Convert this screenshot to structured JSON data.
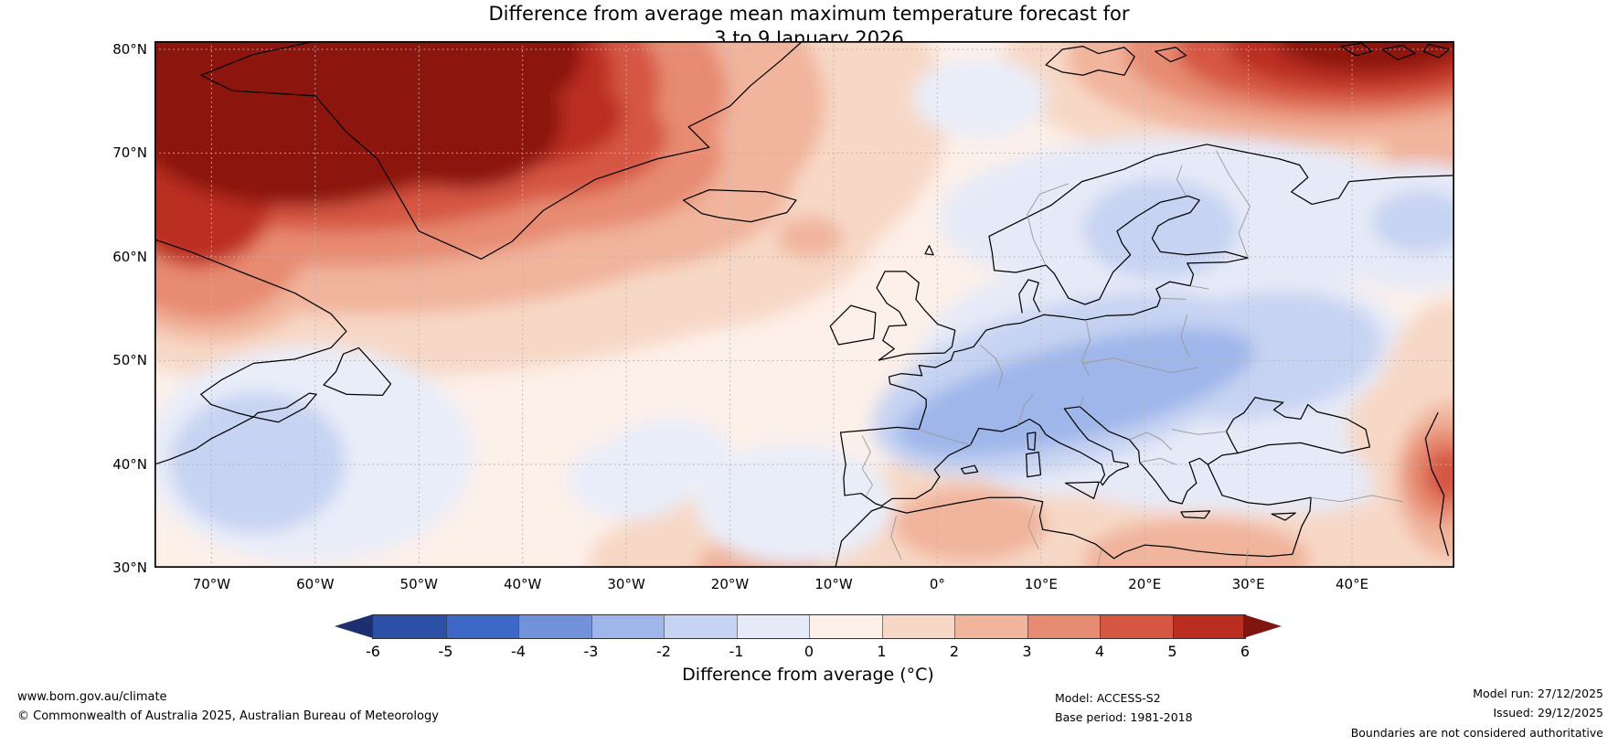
{
  "title": {
    "line1": "Difference from average mean maximum temperature forecast for",
    "line2": "3 to 9 January 2026"
  },
  "map": {
    "lat_labels": [
      "80°N",
      "70°N",
      "60°N",
      "50°N",
      "40°N",
      "30°N"
    ],
    "lon_labels": [
      "70°W",
      "60°W",
      "50°W",
      "40°W",
      "30°W",
      "20°W",
      "10°W",
      "0°",
      "10°E",
      "20°E",
      "30°E",
      "40°E"
    ]
  },
  "colorbar": {
    "label": "Difference from average (°C)",
    "ticks": [
      "-6",
      "-5",
      "-4",
      "-3",
      "-2",
      "-1",
      "0",
      "1",
      "2",
      "3",
      "4",
      "5",
      "6"
    ],
    "segment_colors": [
      "#2b50a5",
      "#3e68c8",
      "#7292dc",
      "#9fb6ea",
      "#c6d3f2",
      "#e6eaf8",
      "#fdf0e9",
      "#f7d8c6",
      "#f1b49c",
      "#e78b72",
      "#d55742",
      "#bb2d21"
    ],
    "arrow_left_color": "#1d2f6e",
    "arrow_right_color": "#7f150e"
  },
  "footer": {
    "left_line1": "www.bom.gov.au/climate",
    "left_line2": "© Commonwealth of Australia 2025, Australian Bureau of Meteorology",
    "model": "Model: ACCESS-S2",
    "base_period": "Base period: 1981-2018",
    "model_run": "Model run: 27/12/2025",
    "issued": "Issued: 29/12/2025",
    "disclaimer": "Boundaries are not considered authoritative"
  }
}
